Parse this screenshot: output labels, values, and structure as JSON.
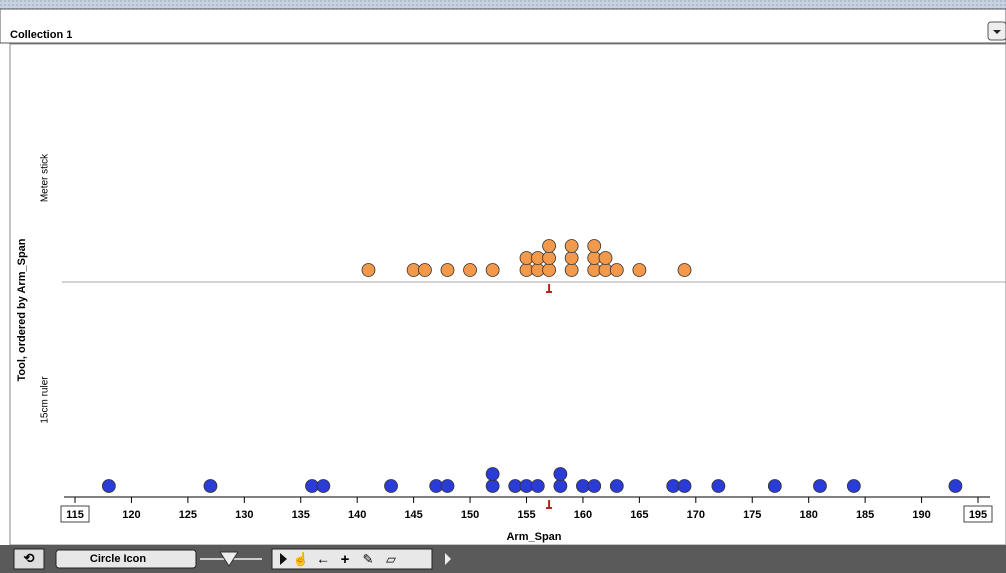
{
  "window": {
    "title": "Collection 1"
  },
  "chart_data": {
    "type": "dot",
    "y_label": "Tool, ordered by Arm_Span",
    "x_label": "Arm_Span",
    "xlim": [
      115,
      195
    ],
    "xticks": [
      115,
      120,
      125,
      130,
      135,
      140,
      145,
      150,
      155,
      160,
      165,
      170,
      175,
      180,
      185,
      190,
      195
    ],
    "series": [
      {
        "name": "Meter stick",
        "color": "#f3994c",
        "values": [
          141,
          145,
          146,
          148,
          150,
          152,
          155,
          155,
          156,
          156,
          157,
          157,
          157,
          159,
          159,
          159,
          161,
          161,
          161,
          162,
          162,
          163,
          165,
          169
        ],
        "median": 157
      },
      {
        "name": "15cm ruler",
        "color": "#2b3bd6",
        "values": [
          118,
          127,
          136,
          137,
          143,
          147,
          148,
          152,
          152,
          154,
          155,
          156,
          158,
          158,
          160,
          161,
          163,
          168,
          169,
          172,
          177,
          181,
          184,
          193
        ],
        "median": 157
      }
    ]
  },
  "toolbar": {
    "icon_menu": "Circle Icon"
  }
}
